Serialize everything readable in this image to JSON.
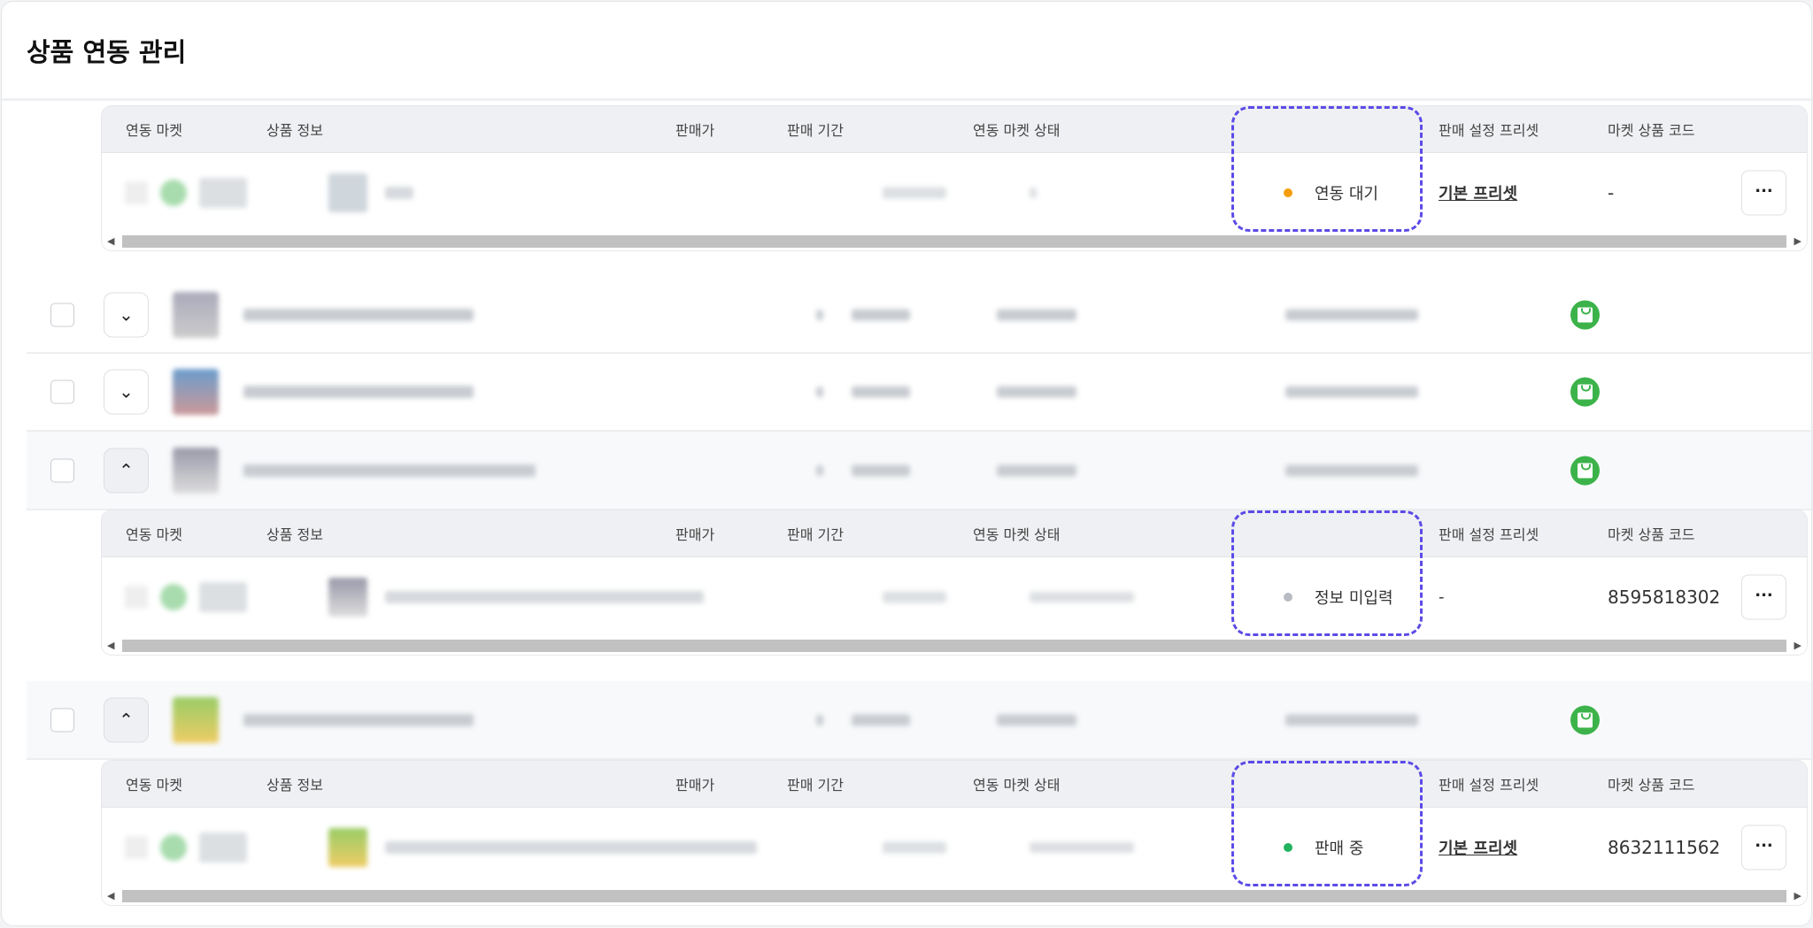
{
  "page": {
    "title": "상품 연동 관리"
  },
  "subtable_columns": [
    "연동 마켓",
    "상품 정보",
    "판매가",
    "판매 기간",
    "연동 마켓 상태",
    "판매 설정 프리셋",
    "마켓 상품 코드"
  ],
  "more_label": "···",
  "subtables": [
    {
      "status": "연동 대기",
      "status_color": "#f59e0b",
      "preset": "기본 프리셋",
      "preset_is_link": true,
      "market_code": "-"
    },
    {
      "status": "정보 미입력",
      "status_color": "#b8bcc2",
      "preset": "-",
      "preset_is_link": false,
      "market_code": "8595818302"
    },
    {
      "status": "판매 중",
      "status_color": "#22b35e",
      "preset": "기본 프리셋",
      "preset_is_link": true,
      "market_code": "8632111562"
    }
  ],
  "rows": [
    {
      "expanded": false,
      "market_icon": "naver-smartstore-icon"
    },
    {
      "expanded": false,
      "market_icon": "naver-smartstore-icon"
    },
    {
      "expanded": true,
      "market_icon": "naver-smartstore-icon"
    },
    {
      "expanded": true,
      "market_icon": "naver-smartstore-icon"
    }
  ],
  "colors": {
    "accent_dash": "#5b4be6",
    "link": "#4a3fe0",
    "market_green": "#3cb34a"
  }
}
